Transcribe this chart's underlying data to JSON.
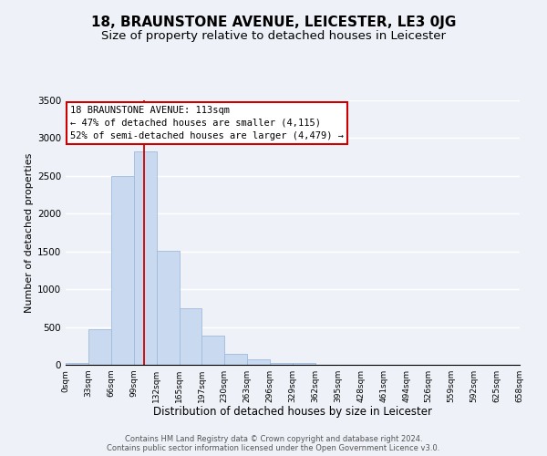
{
  "title": "18, BRAUNSTONE AVENUE, LEICESTER, LE3 0JG",
  "subtitle": "Size of property relative to detached houses in Leicester",
  "xlabel": "Distribution of detached houses by size in Leicester",
  "ylabel": "Number of detached properties",
  "bin_edges": [
    0,
    33,
    66,
    99,
    132,
    165,
    197,
    230,
    263,
    296,
    329,
    362,
    395,
    428,
    461,
    494,
    526,
    559,
    592,
    625,
    658
  ],
  "bar_heights": [
    30,
    470,
    2500,
    2820,
    1510,
    750,
    390,
    140,
    70,
    30,
    30,
    0,
    0,
    0,
    0,
    0,
    0,
    0,
    0,
    0
  ],
  "bar_color": "#c8d9f0",
  "bar_edgecolor": "#a0bbda",
  "ylim": [
    0,
    3500
  ],
  "yticks": [
    0,
    500,
    1000,
    1500,
    2000,
    2500,
    3000,
    3500
  ],
  "property_size": 113,
  "red_line_color": "#cc0000",
  "annotation_line1": "18 BRAUNSTONE AVENUE: 113sqm",
  "annotation_line2": "← 47% of detached houses are smaller (4,115)",
  "annotation_line3": "52% of semi-detached houses are larger (4,479) →",
  "footer_line1": "Contains HM Land Registry data © Crown copyright and database right 2024.",
  "footer_line2": "Contains public sector information licensed under the Open Government Licence v3.0.",
  "background_color": "#eef2f8",
  "grid_color": "#ffffff",
  "title_fontsize": 11,
  "subtitle_fontsize": 9.5,
  "tick_labels": [
    "0sqm",
    "33sqm",
    "66sqm",
    "99sqm",
    "132sqm",
    "165sqm",
    "197sqm",
    "230sqm",
    "263sqm",
    "296sqm",
    "329sqm",
    "362sqm",
    "395sqm",
    "428sqm",
    "461sqm",
    "494sqm",
    "526sqm",
    "559sqm",
    "592sqm",
    "625sqm",
    "658sqm"
  ]
}
